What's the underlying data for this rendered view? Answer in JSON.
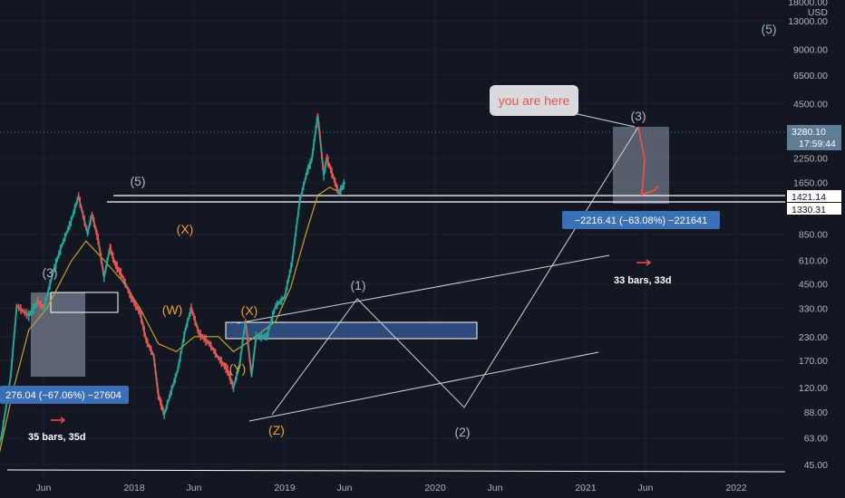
{
  "chart_data": {
    "type": "line",
    "y_scale": "log",
    "currency": "USD",
    "y_top_label": "18000.00",
    "y_ticks": [
      "13000.00",
      "9000.00",
      "6500.00",
      "4500.00",
      "2250.00",
      "1650.00",
      "850.00",
      "610.00",
      "450.00",
      "330.00",
      "230.00",
      "170.00",
      "120.00",
      "88.00",
      "63.00",
      "45.00"
    ],
    "x_ticks": [
      "Jun",
      "2018",
      "Jun",
      "2019",
      "Jun",
      "2020",
      "Jun",
      "2021",
      "Jun",
      "2022"
    ],
    "price_tags": [
      {
        "value": "3280.10",
        "sub": "17:59:44",
        "bg": "#5f7e96",
        "fg": "#ffffff"
      },
      {
        "value": "1421.14",
        "bg": "#ffffff",
        "fg": "#131722"
      },
      {
        "value": "1330.31",
        "bg": "#ffffff",
        "fg": "#131722"
      }
    ],
    "wave_labels": [
      {
        "text": "(5)",
        "color": "#8fb7b6"
      },
      {
        "text": "(3)",
        "color": "#b2b5be"
      },
      {
        "text": "(5)",
        "color": "#b2b5be"
      },
      {
        "text": "(X)",
        "color": "#f0a030"
      },
      {
        "text": "(W)",
        "color": "#f0a030"
      },
      {
        "text": "(X)",
        "color": "#f0a030"
      },
      {
        "text": "(Y)",
        "color": "#f0a030"
      },
      {
        "text": "(Z)",
        "color": "#f0a030"
      },
      {
        "text": "(1)",
        "color": "#b2b5be"
      },
      {
        "text": "(2)",
        "color": "#b2b5be"
      },
      {
        "text": "(3)",
        "color": "#b2b5be"
      }
    ],
    "measurements": [
      {
        "label": "276.04 (−67.06%) −27604",
        "bars": "35 bars, 35d"
      },
      {
        "label": "−2216.41 (−63.08%) −221641",
        "bars": "33 bars, 33d"
      }
    ],
    "callout": "you are here",
    "price_path": [
      [
        0.03,
        38
      ],
      [
        0.12,
        65
      ],
      [
        0.18,
        140
      ],
      [
        0.22,
        340
      ],
      [
        0.3,
        300
      ],
      [
        0.36,
        360
      ],
      [
        0.4,
        330
      ],
      [
        0.46,
        520
      ],
      [
        0.52,
        740
      ],
      [
        0.58,
        1000
      ],
      [
        0.63,
        1380
      ],
      [
        0.69,
        860
      ],
      [
        0.72,
        1100
      ],
      [
        0.76,
        800
      ],
      [
        0.8,
        490
      ],
      [
        0.84,
        720
      ],
      [
        0.87,
        590
      ],
      [
        0.92,
        500
      ],
      [
        0.98,
        380
      ],
      [
        1.04,
        310
      ],
      [
        1.08,
        220
      ],
      [
        1.13,
        180
      ],
      [
        1.16,
        110
      ],
      [
        1.2,
        85
      ],
      [
        1.24,
        110
      ],
      [
        1.29,
        150
      ],
      [
        1.34,
        250
      ],
      [
        1.38,
        330
      ],
      [
        1.43,
        240
      ],
      [
        1.5,
        210
      ],
      [
        1.56,
        175
      ],
      [
        1.62,
        150
      ],
      [
        1.66,
        120
      ],
      [
        1.7,
        160
      ],
      [
        1.74,
        280
      ],
      [
        1.78,
        140
      ],
      [
        1.81,
        230
      ],
      [
        1.88,
        230
      ],
      [
        1.94,
        340
      ],
      [
        2.0,
        380
      ],
      [
        2.05,
        600
      ],
      [
        2.1,
        1300
      ],
      [
        2.15,
        1900
      ],
      [
        2.18,
        2200
      ],
      [
        2.22,
        3900
      ],
      [
        2.26,
        1800
      ],
      [
        2.28,
        2250
      ],
      [
        2.33,
        1700
      ],
      [
        2.36,
        1430
      ],
      [
        2.4,
        1650
      ]
    ],
    "ma_path": [
      [
        0.08,
        42
      ],
      [
        0.2,
        120
      ],
      [
        0.3,
        250
      ],
      [
        0.42,
        330
      ],
      [
        0.58,
        600
      ],
      [
        0.68,
        780
      ],
      [
        0.8,
        610
      ],
      [
        0.92,
        470
      ],
      [
        1.04,
        330
      ],
      [
        1.16,
        210
      ],
      [
        1.28,
        190
      ],
      [
        1.4,
        230
      ],
      [
        1.56,
        230
      ],
      [
        1.66,
        190
      ],
      [
        1.74,
        210
      ],
      [
        1.82,
        235
      ],
      [
        1.94,
        280
      ],
      [
        2.04,
        430
      ],
      [
        2.14,
        850
      ],
      [
        2.22,
        1400
      ],
      [
        2.3,
        1550
      ],
      [
        2.36,
        1460
      ]
    ],
    "grid": true
  }
}
